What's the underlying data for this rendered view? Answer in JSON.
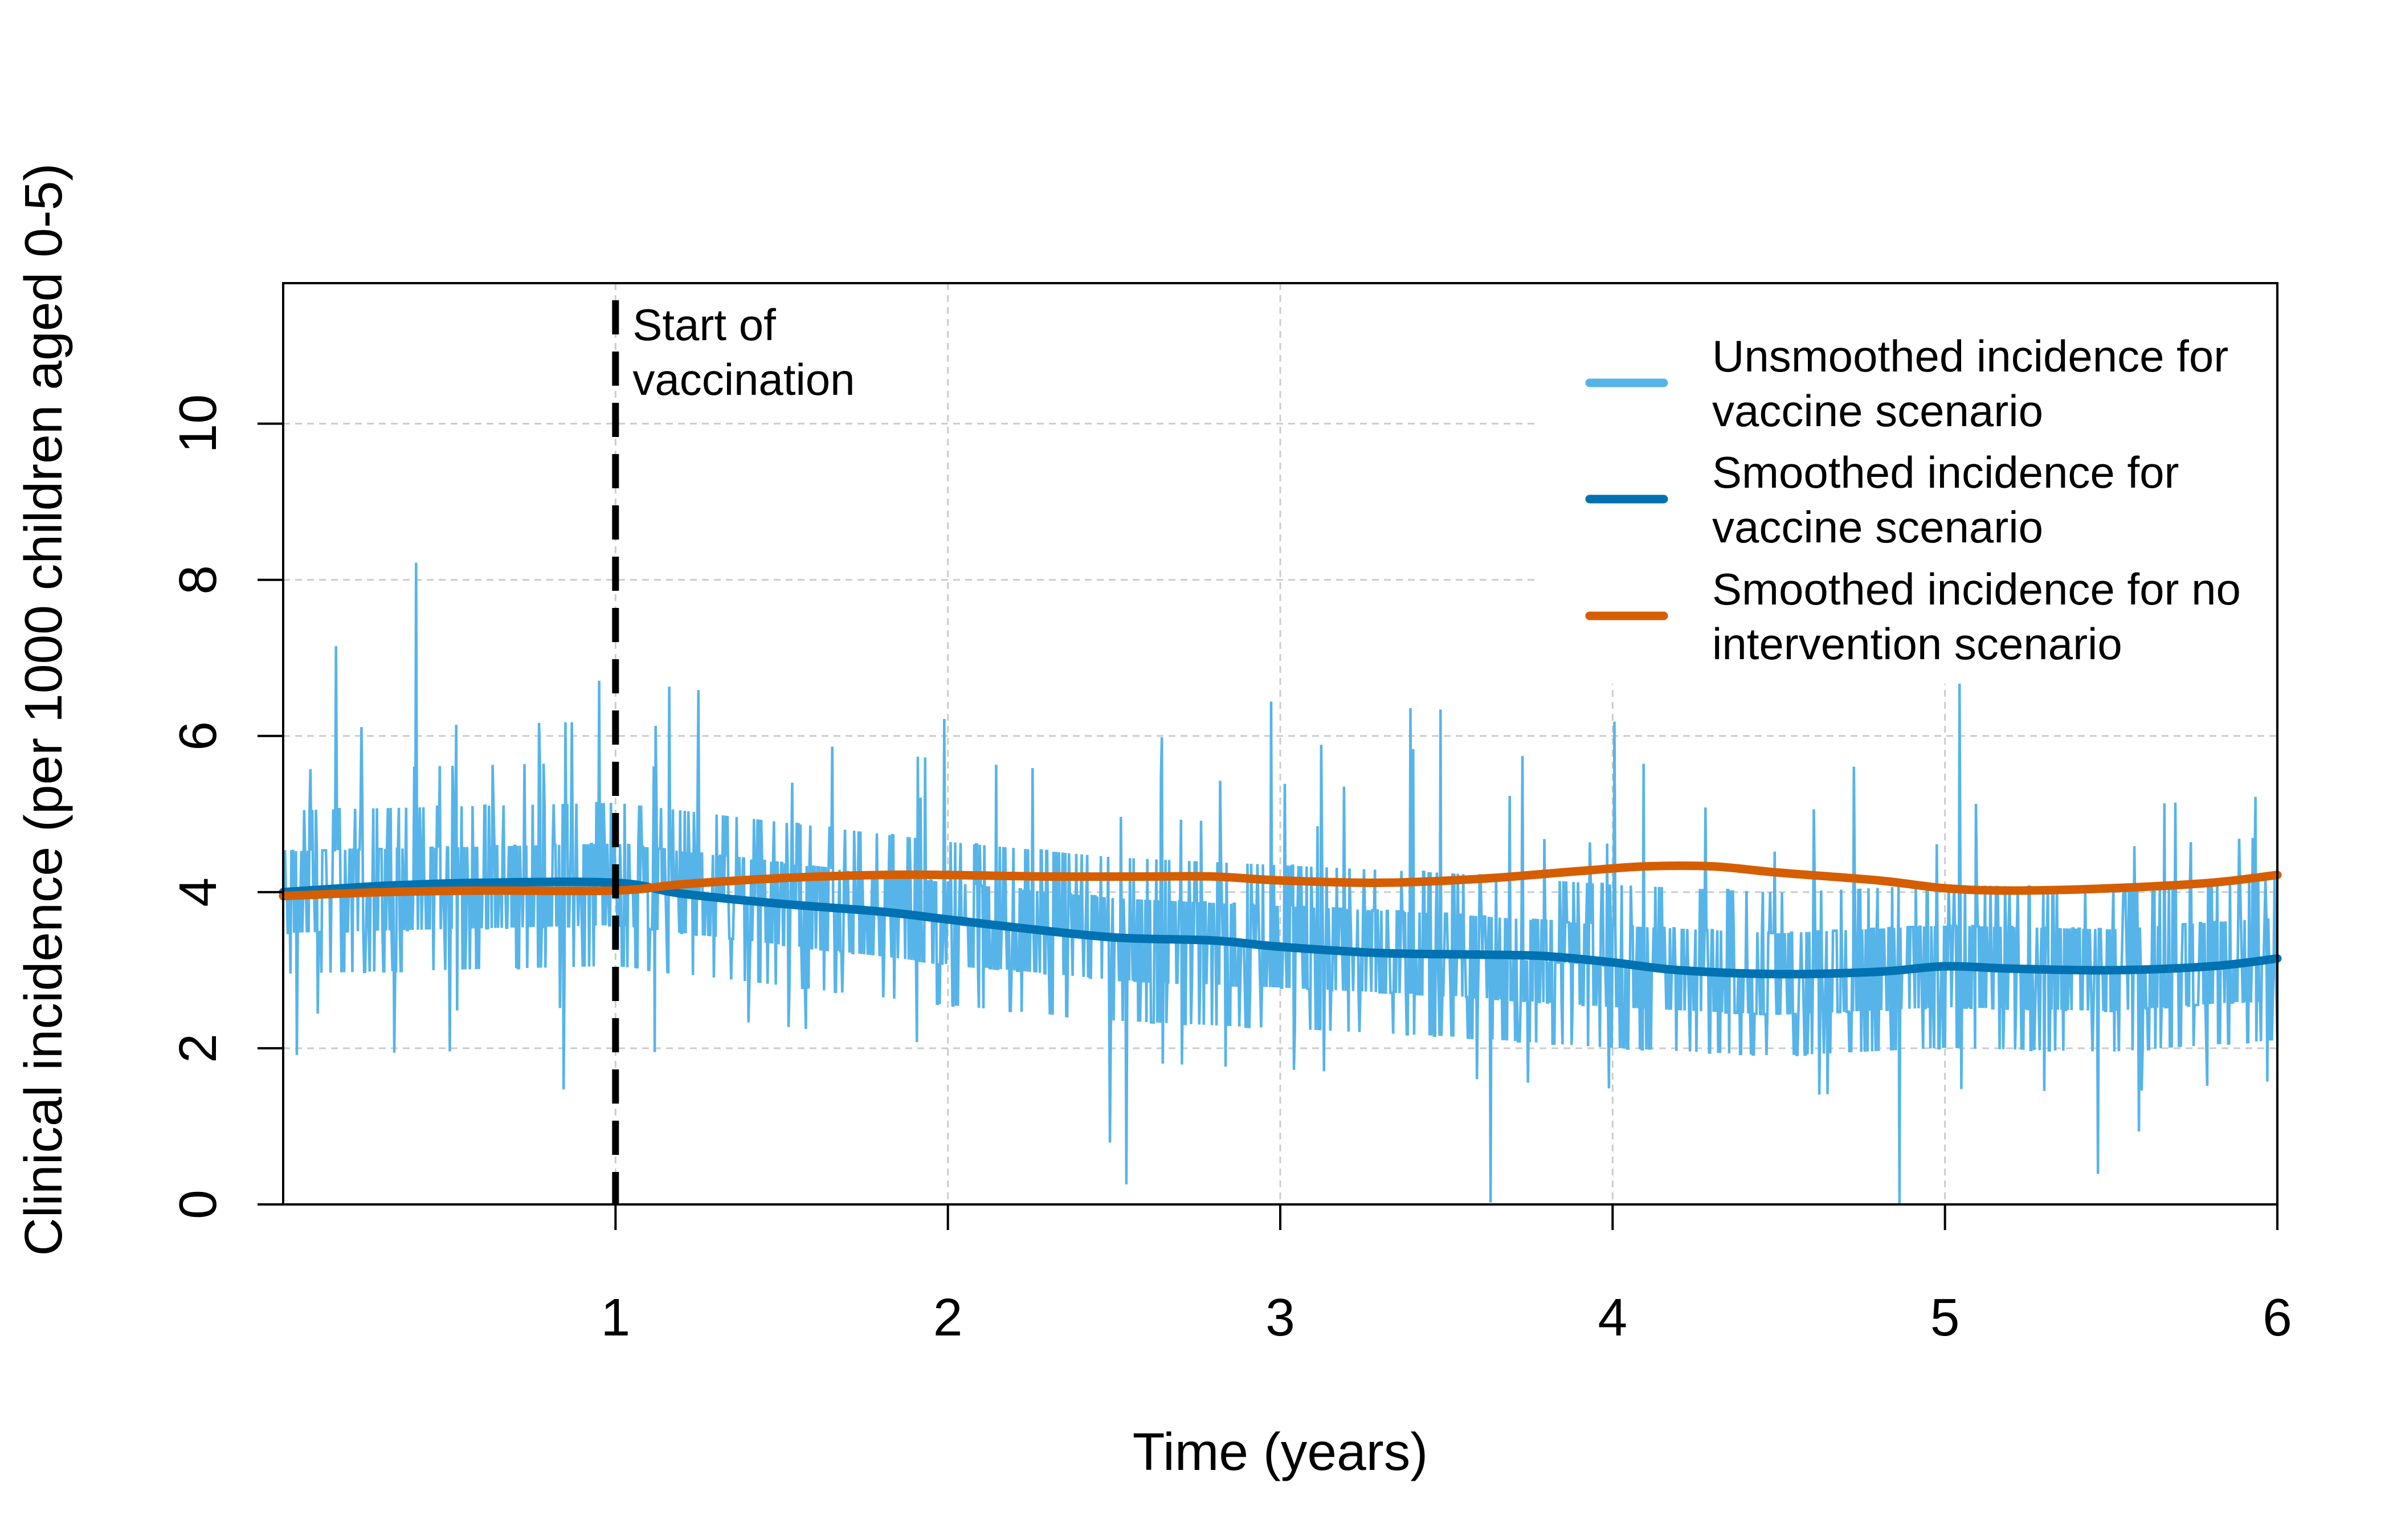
{
  "chart_data": {
    "type": "line",
    "xlabel": "Time (years)",
    "ylabel": "Clinical incidence (per 1000 children aged 0-5)",
    "xlim": [
      0,
      6
    ],
    "ylim": [
      0,
      11.8
    ],
    "xticks": [
      1,
      2,
      3,
      4,
      5,
      6
    ],
    "yticks": [
      0,
      2,
      4,
      6,
      8,
      10
    ],
    "grid": true,
    "legend_position": "top-right",
    "vline": {
      "x": 1,
      "label": [
        "Start of",
        "vaccination"
      ]
    },
    "series": [
      {
        "name": "Unsmoothed incidence for vaccine scenario",
        "label_lines": [
          "Unsmoothed incidence for",
          "vaccine scenario"
        ],
        "color": "#56B4E9",
        "style": "noisy",
        "mean_by_year": [
          [
            0,
            4.0
          ],
          [
            1,
            4.1
          ],
          [
            1.5,
            3.85
          ],
          [
            2,
            3.6
          ],
          [
            2.5,
            3.4
          ],
          [
            3,
            3.3
          ],
          [
            3.5,
            3.2
          ],
          [
            4,
            3.05
          ],
          [
            4.5,
            2.95
          ],
          [
            5,
            3.05
          ],
          [
            5.5,
            3.0
          ],
          [
            6,
            3.15
          ]
        ],
        "max": 9.0,
        "min": 0.0
      },
      {
        "name": "Smoothed incidence for vaccine scenario",
        "label_lines": [
          "Smoothed incidence for",
          "vaccine scenario"
        ],
        "color": "#0072B2",
        "x": [
          0,
          0.3,
          0.6,
          1.0,
          1.2,
          1.5,
          1.8,
          2.0,
          2.2,
          2.5,
          2.8,
          3.0,
          3.3,
          3.6,
          3.8,
          4.0,
          4.2,
          4.5,
          4.8,
          5.0,
          5.2,
          5.5,
          5.8,
          6.0
        ],
        "y": [
          4.0,
          4.08,
          4.12,
          4.12,
          3.98,
          3.85,
          3.75,
          3.65,
          3.55,
          3.42,
          3.38,
          3.3,
          3.22,
          3.2,
          3.18,
          3.1,
          3.0,
          2.95,
          2.98,
          3.05,
          3.02,
          3.0,
          3.05,
          3.15
        ]
      },
      {
        "name": "Smoothed incidence for no intervention scenario",
        "label_lines": [
          "Smoothed incidence for no",
          "intervention scenario"
        ],
        "color": "#D55E00",
        "x": [
          0,
          0.3,
          0.6,
          1.0,
          1.2,
          1.5,
          1.8,
          2.0,
          2.3,
          2.6,
          2.8,
          3.0,
          3.3,
          3.6,
          3.9,
          4.1,
          4.3,
          4.5,
          4.8,
          5.0,
          5.2,
          5.5,
          5.8,
          6.0
        ],
        "y": [
          3.95,
          4.0,
          4.02,
          4.02,
          4.1,
          4.18,
          4.22,
          4.22,
          4.2,
          4.2,
          4.2,
          4.15,
          4.12,
          4.17,
          4.27,
          4.33,
          4.33,
          4.25,
          4.15,
          4.05,
          4.02,
          4.05,
          4.12,
          4.22
        ]
      }
    ]
  },
  "colors": {
    "unsmoothed_vaccine": "#56B4E9",
    "smoothed_vaccine": "#0072B2",
    "smoothed_no_intervention": "#D55E00",
    "grid": "#cccccc",
    "axis": "#000000"
  }
}
